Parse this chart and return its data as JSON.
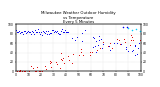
{
  "title": "Milwaukee Weather Outdoor Humidity\nvs Temperature\nEvery 5 Minutes",
  "title_fontsize": 2.8,
  "background_color": "#ffffff",
  "grid_color": "#bbbbbb",
  "blue_color": "#0000ee",
  "red_color": "#dd0000",
  "cyan_color": "#00ccff",
  "xlim": [
    0,
    100
  ],
  "ylim": [
    0,
    100
  ],
  "tick_fontsize": 2.2,
  "marker_size": 0.5
}
